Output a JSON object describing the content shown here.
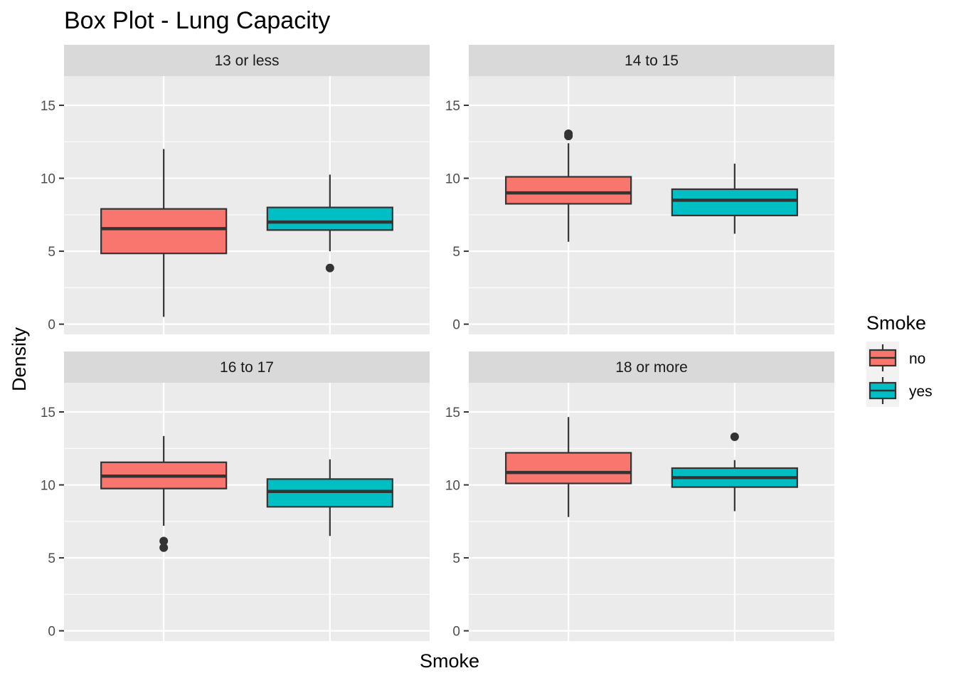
{
  "chart_data": {
    "type": "box",
    "title": "Box Plot - Lung Capacity",
    "xlabel": "Smoke",
    "ylabel": "Density",
    "ylim": [
      -0.7,
      17
    ],
    "yticks": [
      0,
      5,
      10,
      15
    ],
    "categories": [
      "no",
      "yes"
    ],
    "legend": {
      "title": "Smoke",
      "position": "right",
      "entries": [
        "no",
        "yes"
      ]
    },
    "colors": {
      "no": "#F8766D",
      "yes": "#00BFC4"
    },
    "panels": [
      {
        "label": "13 or less",
        "boxes": [
          {
            "category": "no",
            "min": 0.5,
            "q1": 4.85,
            "median": 6.55,
            "q3": 7.9,
            "max": 12.0,
            "outliers": []
          },
          {
            "category": "yes",
            "min": 5.0,
            "q1": 6.45,
            "median": 7.0,
            "q3": 8.0,
            "max": 10.25,
            "outliers": [
              3.85
            ]
          }
        ]
      },
      {
        "label": "14 to 15",
        "boxes": [
          {
            "category": "no",
            "min": 5.65,
            "q1": 8.25,
            "median": 9.0,
            "q3": 10.1,
            "max": 12.4,
            "outliers": [
              12.9,
              13.05
            ]
          },
          {
            "category": "yes",
            "min": 6.2,
            "q1": 7.45,
            "median": 8.5,
            "q3": 9.25,
            "max": 11.0,
            "outliers": []
          }
        ]
      },
      {
        "label": "16 to 17",
        "boxes": [
          {
            "category": "no",
            "min": 7.2,
            "q1": 9.75,
            "median": 10.6,
            "q3": 11.55,
            "max": 13.35,
            "outliers": [
              6.15,
              5.7
            ]
          },
          {
            "category": "yes",
            "min": 6.5,
            "q1": 8.5,
            "median": 9.55,
            "q3": 10.4,
            "max": 11.75,
            "outliers": []
          }
        ]
      },
      {
        "label": "18 or more",
        "boxes": [
          {
            "category": "no",
            "min": 7.8,
            "q1": 10.1,
            "median": 10.85,
            "q3": 12.2,
            "max": 14.65,
            "outliers": []
          },
          {
            "category": "yes",
            "min": 8.2,
            "q1": 9.85,
            "median": 10.5,
            "q3": 11.15,
            "max": 11.7,
            "outliers": [
              13.3
            ]
          }
        ]
      }
    ]
  }
}
